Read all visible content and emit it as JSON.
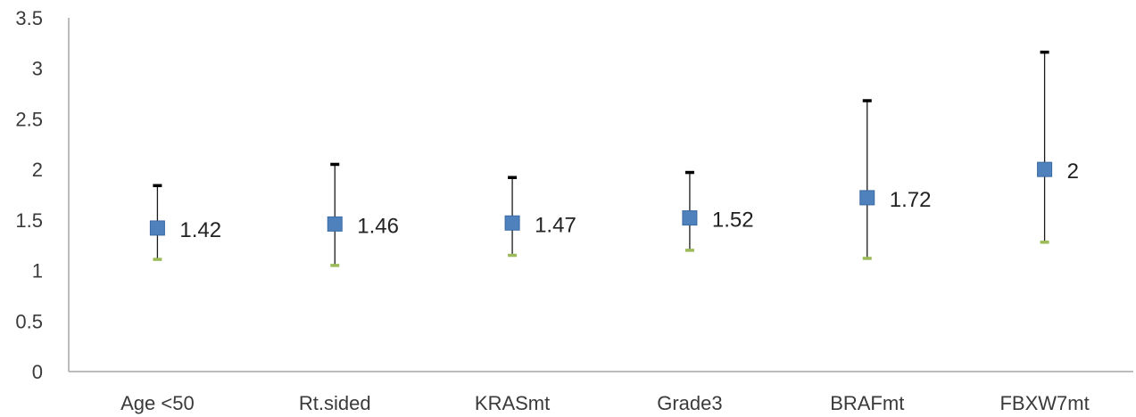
{
  "chart_data": {
    "type": "scatter",
    "categories": [
      "Age <50",
      "Rt.sided",
      "KRASmt",
      "Grade3",
      "BRAFmt",
      "FBXW7mt"
    ],
    "series": [
      {
        "values": [
          1.42,
          1.46,
          1.47,
          1.52,
          1.72,
          2
        ],
        "lower": [
          1.11,
          1.05,
          1.15,
          1.2,
          1.12,
          1.28
        ],
        "upper": [
          1.84,
          2.05,
          1.92,
          1.97,
          2.68,
          3.16
        ],
        "data_labels": [
          "1.42",
          "1.46",
          "1.47",
          "1.52",
          "1.72",
          "2"
        ]
      }
    ],
    "y_ticks": [
      "0",
      "0.5",
      "1",
      "1.5",
      "2",
      "2.5",
      "3",
      "3.5"
    ],
    "ylim": [
      0,
      3.5
    ],
    "grid": false,
    "legend": "none",
    "colors": {
      "marker": "#4f81bd",
      "marker_edge": "#3a6aa3",
      "error_bar": "#1a1a1a",
      "upper_cap": "#000000",
      "lower_cap": "#9bbb59",
      "axis": "#a6a6a6"
    }
  }
}
